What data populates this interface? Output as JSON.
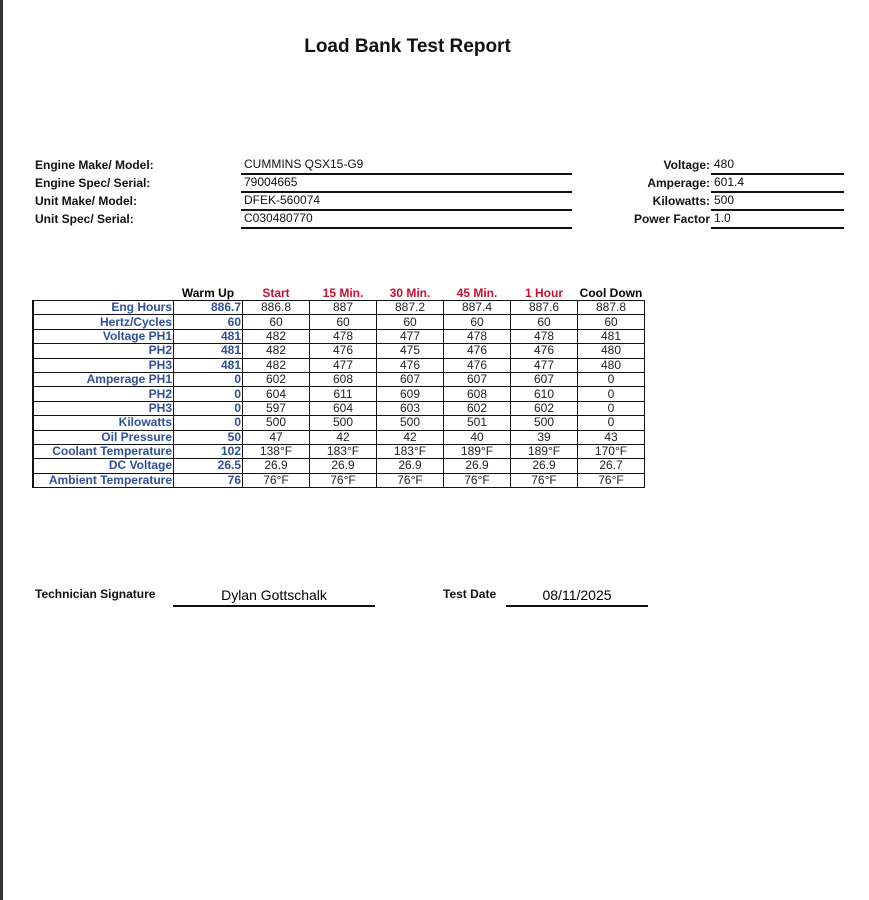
{
  "title": "Load Bank Test Report",
  "info_left": [
    {
      "label": "Engine Make/ Model:",
      "value": "CUMMINS  QSX15-G9"
    },
    {
      "label": "Engine Spec/ Serial:",
      "value": "79004665"
    },
    {
      "label": "Unit Make/ Model:",
      "value": "DFEK-560074"
    },
    {
      "label": "Unit Spec/ Serial:",
      "value": "C030480770"
    }
  ],
  "info_right": [
    {
      "label": "Voltage:",
      "value": "480"
    },
    {
      "label": "Amperage:",
      "value": "601.4"
    },
    {
      "label": "Kilowatts:",
      "value": "500"
    },
    {
      "label": "Power Factor",
      "value": "1.0"
    }
  ],
  "table": {
    "columns": [
      "Warm Up",
      "Start",
      "15 Min.",
      "30 Min.",
      "45 Min.",
      "1 Hour",
      "Cool Down"
    ],
    "rows": [
      {
        "label": "Eng Hours",
        "values": [
          "886.7",
          "886.8",
          "887",
          "887.2",
          "887.4",
          "887.6",
          "887.8"
        ]
      },
      {
        "label": "Hertz/Cycles",
        "values": [
          "60",
          "60",
          "60",
          "60",
          "60",
          "60",
          "60"
        ]
      },
      {
        "label": "Voltage PH1",
        "values": [
          "481",
          "482",
          "478",
          "477",
          "478",
          "478",
          "481"
        ]
      },
      {
        "label": "PH2",
        "values": [
          "481",
          "482",
          "476",
          "475",
          "476",
          "476",
          "480"
        ]
      },
      {
        "label": "PH3",
        "values": [
          "481",
          "482",
          "477",
          "476",
          "476",
          "477",
          "480"
        ]
      },
      {
        "label": "Amperage PH1",
        "values": [
          "0",
          "602",
          "608",
          "607",
          "607",
          "607",
          "0"
        ]
      },
      {
        "label": "PH2",
        "values": [
          "0",
          "604",
          "611",
          "609",
          "608",
          "610",
          "0"
        ]
      },
      {
        "label": "PH3",
        "values": [
          "0",
          "597",
          "604",
          "603",
          "602",
          "602",
          "0"
        ]
      },
      {
        "label": "Kilowatts",
        "values": [
          "0",
          "500",
          "500",
          "500",
          "501",
          "500",
          "0"
        ]
      },
      {
        "label": "Oil Pressure",
        "values": [
          "50",
          "47",
          "42",
          "42",
          "40",
          "39",
          "43"
        ]
      },
      {
        "label": "Coolant Temperature",
        "values": [
          "102",
          "138°F",
          "183°F",
          "183°F",
          "189°F",
          "189°F",
          "170°F"
        ]
      },
      {
        "label": "DC Voltage",
        "values": [
          "26.5",
          "26.9",
          "26.9",
          "26.9",
          "26.9",
          "26.9",
          "26.7"
        ]
      },
      {
        "label": "Ambient Temperature",
        "values": [
          "76",
          "76°F",
          "76°F",
          "76°F",
          "76°F",
          "76°F",
          "76°F"
        ]
      }
    ]
  },
  "signature": {
    "label": "Technician Signature",
    "value": "Dylan Gottschalk",
    "date_label": "Test Date",
    "date": "08/11/2025"
  },
  "colors": {
    "label_blue": "#2f4f9a",
    "header_red": "#c8102e"
  }
}
